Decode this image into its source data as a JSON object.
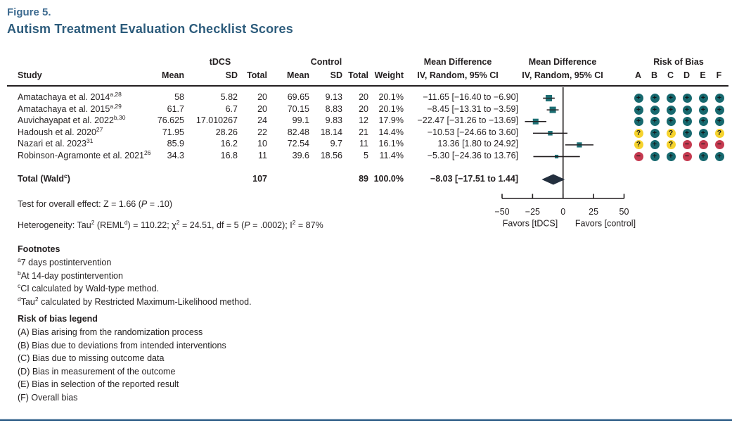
{
  "figure": {
    "label": "Figure 5.",
    "title": "Autism Treatment Evaluation Checklist Scores"
  },
  "table": {
    "group_headers": {
      "tdcs": "tDCS",
      "control": "Control",
      "mean_difference_1": "Mean Difference",
      "mean_difference_2": "Mean Difference",
      "risk_of_bias": "Risk of Bias"
    },
    "col_headers": {
      "study": "Study",
      "mean_tdcs": "Mean",
      "sd_tdcs": "SD",
      "total_tdcs": "Total",
      "mean_control": "Mean",
      "sd_control": "SD",
      "total_control": "Total",
      "weight": "Weight",
      "iv_random_1": "IV, Random, 95% CI",
      "iv_random_2": "IV, Random, 95% CI",
      "rob_letters": [
        "A",
        "B",
        "C",
        "D",
        "E",
        "F"
      ]
    },
    "rows": [
      {
        "study": "Amatachaya et al. 2014",
        "sup": "a,28",
        "mean1": "58",
        "sd1": "5.82",
        "total1": "20",
        "mean2": "69.65",
        "sd2": "9.13",
        "total2": "20",
        "weight": "20.1%",
        "md": "−11.65 [−16.40 to −6.90]",
        "rob": [
          "plus",
          "plus",
          "plus",
          "plus",
          "plus",
          "plus"
        ]
      },
      {
        "study": "Amatachaya et al. 2015",
        "sup": "a,29",
        "mean1": "61.7",
        "sd1": "6.7",
        "total1": "20",
        "mean2": "70.15",
        "sd2": "8.83",
        "total2": "20",
        "weight": "20.1%",
        "md": "−8.45 [−13.31 to −3.59]",
        "rob": [
          "plus",
          "plus",
          "plus",
          "plus",
          "plus",
          "plus"
        ]
      },
      {
        "study": "Auvichayapat et al. 2022",
        "sup": "b,30",
        "mean1": "76.625",
        "sd1": "17.010267",
        "total1": "24",
        "mean2": "99.1",
        "sd2": "9.83",
        "total2": "12",
        "weight": "17.9%",
        "md": "−22.47 [−31.26 to −13.69]",
        "rob": [
          "plus",
          "plus",
          "plus",
          "plus",
          "plus",
          "plus"
        ]
      },
      {
        "study": "Hadoush et al. 2020",
        "sup": "27",
        "mean1": "71.95",
        "sd1": "28.26",
        "total1": "22",
        "mean2": "82.48",
        "sd2": "18.14",
        "total2": "21",
        "weight": "14.4%",
        "md": "−10.53 [−24.66 to 3.60]",
        "rob": [
          "question",
          "plus",
          "question",
          "plus",
          "plus",
          "question"
        ]
      },
      {
        "study": "Nazari et al. 2023",
        "sup": "31",
        "mean1": "85.9",
        "sd1": "16.2",
        "total1": "10",
        "mean2": "72.54",
        "sd2": "9.7",
        "total2": "11",
        "weight": "16.1%",
        "md": "13.36 [1.80 to 24.92]",
        "rob": [
          "question",
          "plus",
          "question",
          "minus",
          "minus",
          "minus"
        ]
      },
      {
        "study": "Robinson-Agramonte et al. 2021",
        "sup": "26",
        "mean1": "34.3",
        "sd1": "16.8",
        "total1": "11",
        "mean2": "39.6",
        "sd2": "18.56",
        "total2": "5",
        "weight": "11.4%",
        "md": "−5.30 [−24.36 to 13.76]",
        "rob": [
          "minus",
          "plus",
          "plus",
          "minus",
          "plus",
          "plus"
        ]
      }
    ],
    "total_row": {
      "label_parts": [
        "Total (Wald",
        {
          "sup": "c"
        },
        ")"
      ],
      "total1": "107",
      "total2": "89",
      "weight": "100.0%",
      "md": "−8.03 [−17.51 to 1.44]"
    }
  },
  "stats": {
    "overall_effect_parts": [
      "Test for overall effect: Z = 1.66 (",
      {
        "i": "P"
      },
      " = .10)"
    ],
    "heterogeneity_parts": [
      "Heterogeneity: Tau",
      {
        "sup": "2"
      },
      " (REML",
      {
        "sup": "d"
      },
      ") = 110.22; χ",
      {
        "sup": "2"
      },
      " = 24.51, df = 5 (",
      {
        "i": "P"
      },
      " = .0002); I",
      {
        "sup": "2"
      },
      " = 87%"
    ]
  },
  "footnotes": {
    "heading": "Footnotes",
    "items": [
      [
        {
          "sup": "a"
        },
        "7 days postintervention"
      ],
      [
        {
          "sup": "b"
        },
        "At 14-day postintervention"
      ],
      [
        {
          "sup": "c"
        },
        "CI calculated by Wald-type method."
      ],
      [
        {
          "sup": "d"
        },
        "Tau",
        {
          "sup": "2"
        },
        " calculated by Restricted Maximum-Likelihood method."
      ]
    ]
  },
  "rob_legend": {
    "heading": "Risk of bias legend",
    "items": [
      "(A) Bias arising from the randomization process",
      "(B) Bias due to deviations from intended interventions",
      "(C) Bias due to missing outcome data",
      "(D) Bias in measurement of the outcome",
      "(E) Bias in selection of the reported result",
      "(F) Overall bias"
    ]
  },
  "rob_symbols": {
    "plus": "+",
    "question": "?",
    "minus": "−"
  },
  "colors": {
    "marker": "#1d6f74",
    "diamond": "#232f3e",
    "line": "#231f20",
    "rob_plus": "#17696f",
    "rob_question": "#f6d32d",
    "rob_minus": "#c53a50",
    "accent_rule": "#2d5c86",
    "title": "#2d5c7c"
  },
  "chart_data": {
    "type": "forest",
    "xlim": [
      -50,
      50
    ],
    "ticks": [
      -50,
      -25,
      0,
      25,
      50
    ],
    "favors_left": "Favors [tDCS]",
    "favors_right": "Favors [control]",
    "studies": [
      {
        "name": "Amatachaya et al. 2014",
        "md": -11.65,
        "lo": -16.4,
        "hi": -6.9,
        "weight": 20.1
      },
      {
        "name": "Amatachaya et al. 2015",
        "md": -8.45,
        "lo": -13.31,
        "hi": -3.59,
        "weight": 20.1
      },
      {
        "name": "Auvichayapat et al. 2022",
        "md": -22.47,
        "lo": -31.26,
        "hi": -13.69,
        "weight": 17.9
      },
      {
        "name": "Hadoush et al. 2020",
        "md": -10.53,
        "lo": -24.66,
        "hi": 3.6,
        "weight": 14.4
      },
      {
        "name": "Nazari et al. 2023",
        "md": 13.36,
        "lo": 1.8,
        "hi": 24.92,
        "weight": 16.1
      },
      {
        "name": "Robinson-Agramonte et al. 2021",
        "md": -5.3,
        "lo": -24.36,
        "hi": 13.76,
        "weight": 11.4
      }
    ],
    "total": {
      "md": -8.03,
      "lo": -17.51,
      "hi": 1.44,
      "weight": 100.0
    }
  }
}
